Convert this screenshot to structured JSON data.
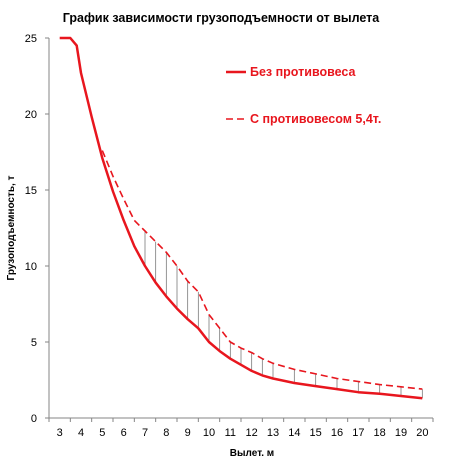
{
  "chart_data": {
    "type": "line",
    "title": "График зависимости грузоподъемности от вылета",
    "xlabel": "Вылет. м",
    "ylabel": "Грузоподъемность, т",
    "x_ticks": [
      "3",
      "4",
      "5",
      "6",
      "7",
      "8",
      "9",
      "10",
      "11",
      "12",
      "13",
      "14",
      "15",
      "16",
      "17",
      "18",
      "19",
      "20"
    ],
    "y_ticks": [
      0,
      5,
      10,
      15,
      20,
      25
    ],
    "ylim": [
      0,
      25
    ],
    "grid": false,
    "legend_position": "top-right",
    "series": [
      {
        "name": "Без противовеса",
        "style": "solid",
        "color": "#e8161e",
        "points": [
          [
            3,
            25.0
          ],
          [
            3.5,
            25.0
          ],
          [
            3.8,
            24.5
          ],
          [
            4,
            22.7
          ],
          [
            4.5,
            19.8
          ],
          [
            5,
            17.1
          ],
          [
            5.5,
            14.9
          ],
          [
            6,
            13.0
          ],
          [
            6.5,
            11.3
          ],
          [
            7,
            10.0
          ],
          [
            7.5,
            8.9
          ],
          [
            8,
            8.0
          ],
          [
            8.5,
            7.2
          ],
          [
            9,
            6.5
          ],
          [
            9.5,
            5.9
          ],
          [
            10,
            5.0
          ],
          [
            10.5,
            4.4
          ],
          [
            11,
            3.9
          ],
          [
            11.5,
            3.5
          ],
          [
            12,
            3.1
          ],
          [
            12.5,
            2.8
          ],
          [
            13,
            2.6
          ],
          [
            14,
            2.3
          ],
          [
            15,
            2.1
          ],
          [
            16,
            1.9
          ],
          [
            17,
            1.7
          ],
          [
            18,
            1.6
          ],
          [
            19,
            1.45
          ],
          [
            20,
            1.3
          ]
        ]
      },
      {
        "name": "С противовесом 5,4т.",
        "style": "dashed",
        "color": "#e8161e",
        "points": [
          [
            5,
            17.6
          ],
          [
            5.5,
            15.9
          ],
          [
            6,
            14.4
          ],
          [
            6.5,
            13.0
          ],
          [
            7,
            12.3
          ],
          [
            7.5,
            11.6
          ],
          [
            8,
            10.9
          ],
          [
            8.5,
            10.0
          ],
          [
            9,
            9.0
          ],
          [
            9.5,
            8.3
          ],
          [
            10,
            6.8
          ],
          [
            10.5,
            5.9
          ],
          [
            11,
            5.0
          ],
          [
            11.5,
            4.6
          ],
          [
            12,
            4.3
          ],
          [
            12.5,
            3.9
          ],
          [
            13,
            3.6
          ],
          [
            14,
            3.2
          ],
          [
            15,
            2.9
          ],
          [
            16,
            2.6
          ],
          [
            17,
            2.4
          ],
          [
            18,
            2.2
          ],
          [
            19,
            2.05
          ],
          [
            20,
            1.9
          ]
        ]
      }
    ],
    "hatch_x": [
      7,
      7.5,
      8,
      8.5,
      9,
      9.5,
      10,
      10.5,
      11,
      11.5,
      12,
      12.5,
      13,
      14,
      15,
      16,
      17,
      18,
      19,
      20
    ]
  }
}
